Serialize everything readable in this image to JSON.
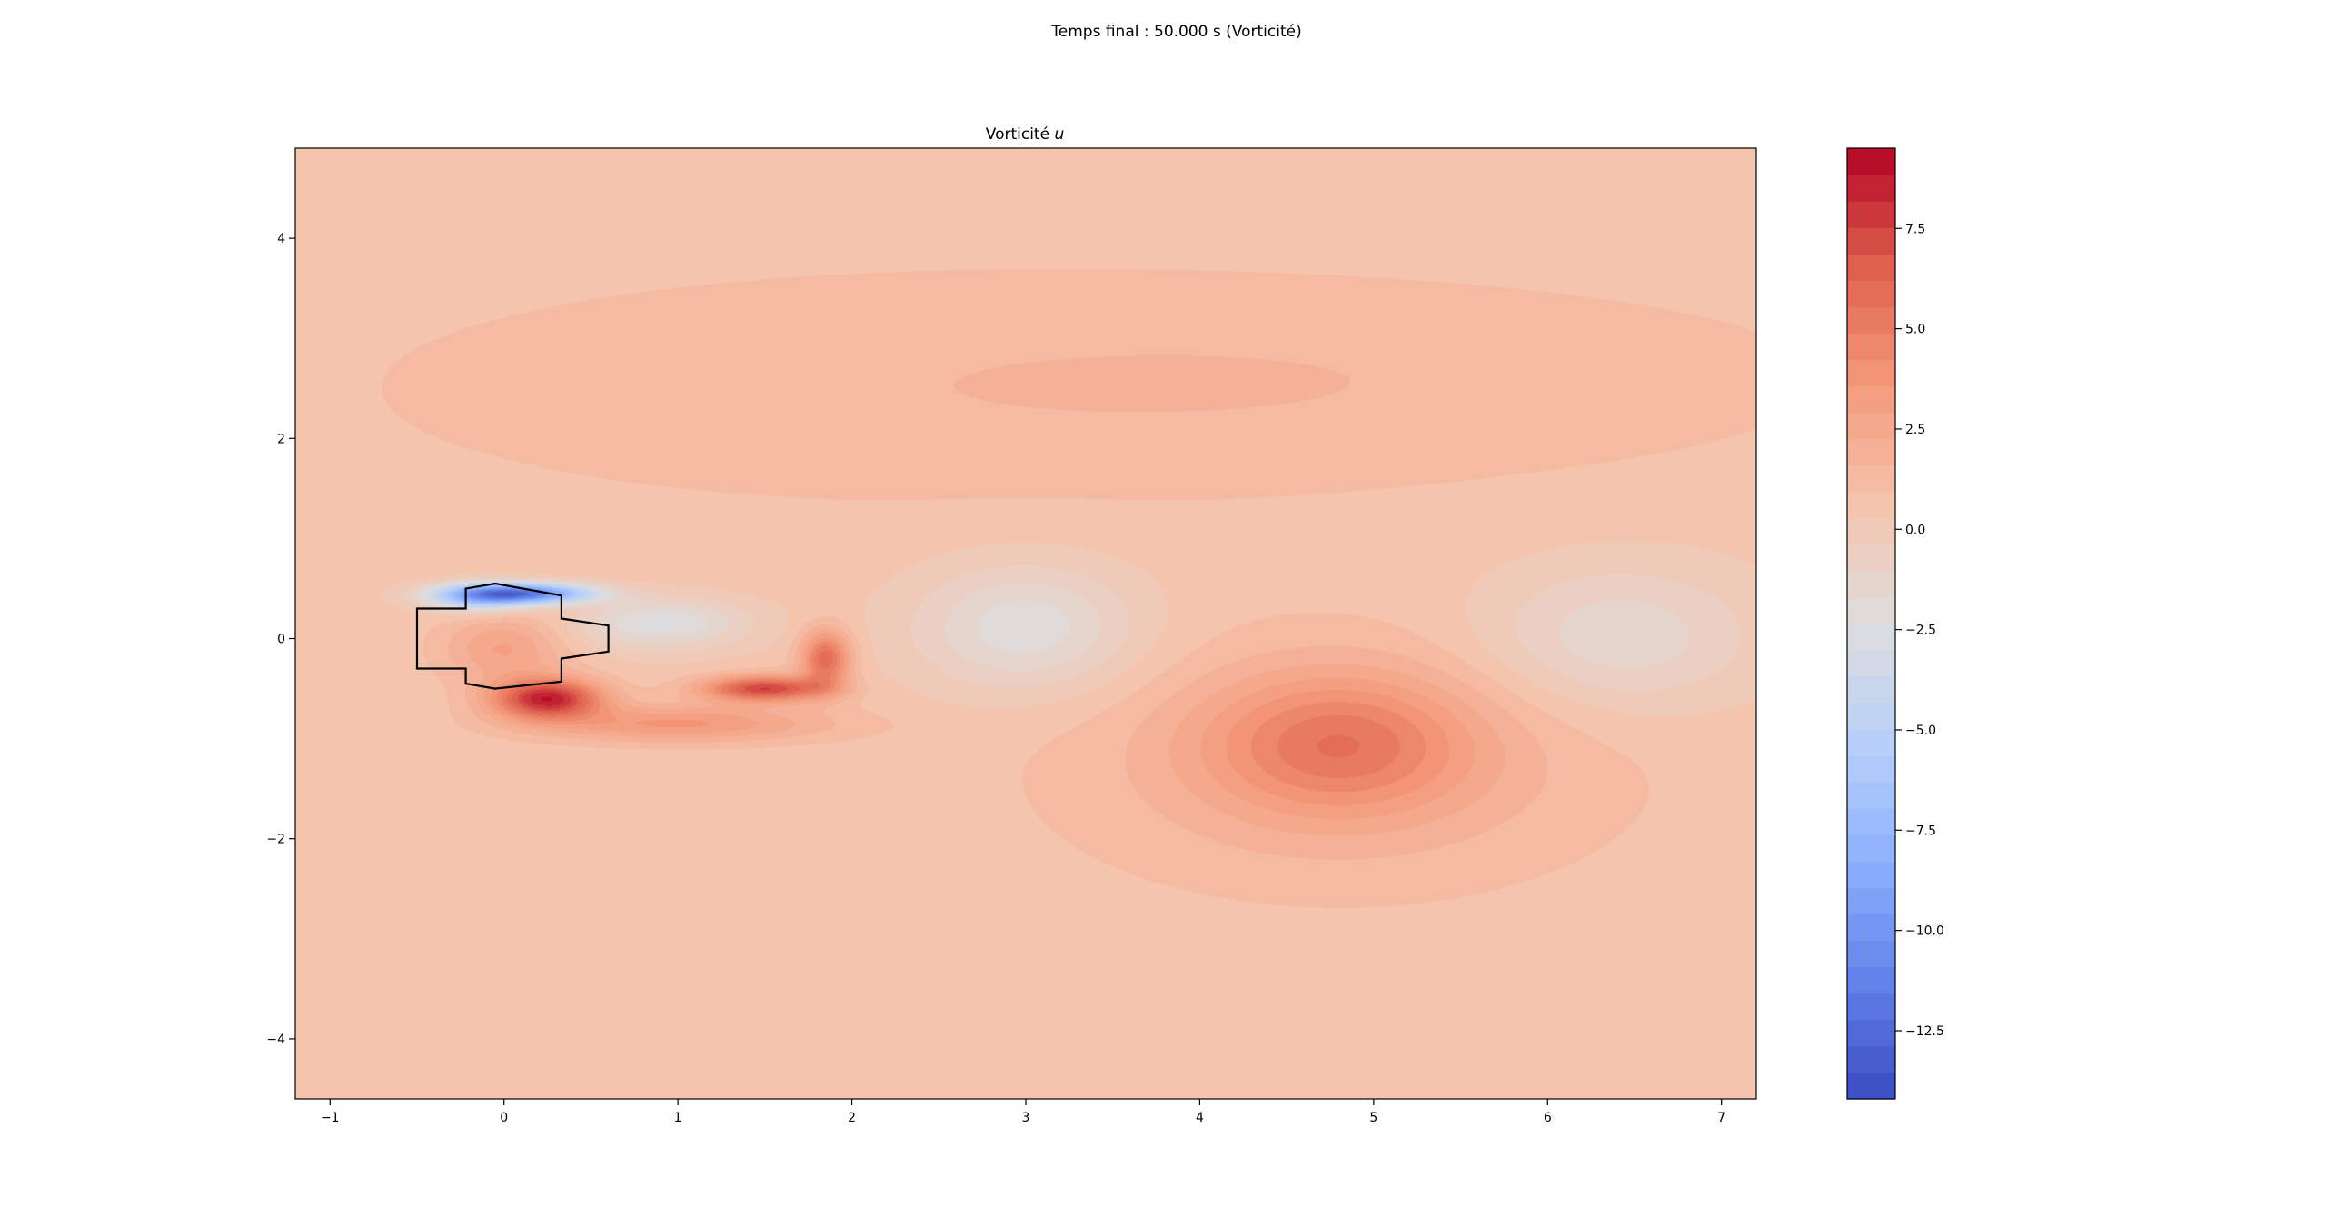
{
  "figure": {
    "suptitle": "Temps final : 50.000 s (Vorticité)"
  },
  "chart_data": {
    "type": "heatmap",
    "title": "Vorticité u",
    "title_main": "Vorticité ",
    "title_italic": "u",
    "xlabel": "",
    "ylabel": "",
    "xlim": [
      -1.2,
      7.2
    ],
    "ylim": [
      -4.6,
      4.9
    ],
    "xticks": [
      -1,
      0,
      1,
      2,
      3,
      4,
      5,
      6,
      7
    ],
    "xtick_labels": [
      "−1",
      "0",
      "1",
      "2",
      "3",
      "4",
      "5",
      "6",
      "7"
    ],
    "yticks": [
      -4,
      -2,
      0,
      2,
      4
    ],
    "ytick_labels": [
      "−4",
      "−2",
      "0",
      "2",
      "4"
    ],
    "colormap": "coolwarm",
    "vmin": -14.2,
    "vmax": 9.5,
    "background_vorticity": 0.5,
    "colorbar_ticks": [
      7.5,
      5.0,
      2.5,
      0.0,
      -2.5,
      -5.0,
      -7.5,
      -10.0,
      -12.5
    ],
    "colorbar_tick_labels": [
      "7.5",
      "5.0",
      "2.5",
      "0.0",
      "−2.5",
      "−5.0",
      "−7.5",
      "−10.0",
      "−12.5"
    ],
    "colorbar_levels": 36,
    "vortex_features": [
      {
        "x": 0.1,
        "y": 0.45,
        "sx": 0.28,
        "sy": 0.07,
        "value": -11.5
      },
      {
        "x": -0.15,
        "y": 0.4,
        "sx": 0.2,
        "sy": 0.1,
        "value": -5
      },
      {
        "x": 0.9,
        "y": 0.15,
        "sx": 0.35,
        "sy": 0.18,
        "value": -3
      },
      {
        "x": 0.25,
        "y": -0.6,
        "sx": 0.22,
        "sy": 0.14,
        "value": 8
      },
      {
        "x": 1.0,
        "y": -0.85,
        "sx": 0.6,
        "sy": 0.13,
        "value": 3.2
      },
      {
        "x": 1.5,
        "y": -0.5,
        "sx": 0.25,
        "sy": 0.09,
        "value": 7
      },
      {
        "x": 1.85,
        "y": -0.2,
        "sx": 0.1,
        "sy": 0.2,
        "value": 5.5
      },
      {
        "x": 0.0,
        "y": -0.1,
        "sx": 0.25,
        "sy": 0.25,
        "value": 2.5
      },
      {
        "x": 3.0,
        "y": 0.1,
        "sx": 0.45,
        "sy": 0.45,
        "value": -2.8
      },
      {
        "x": 4.8,
        "y": -1.05,
        "sx": 0.55,
        "sy": 0.5,
        "value": 3.8
      },
      {
        "x": 4.8,
        "y": -1.3,
        "sx": 1.2,
        "sy": 0.9,
        "value": 1.4
      },
      {
        "x": 6.4,
        "y": 0.0,
        "sx": 0.55,
        "sy": 0.5,
        "value": -2.2
      },
      {
        "x": 2.3,
        "y": 2.5,
        "sx": 2.5,
        "sy": 0.9,
        "value": 0.9
      },
      {
        "x": 5.5,
        "y": 2.6,
        "sx": 2.0,
        "sy": 0.7,
        "value": 0.6
      }
    ],
    "obstacle_polygon": [
      [
        -0.5,
        0.3
      ],
      [
        -0.22,
        0.3
      ],
      [
        -0.22,
        0.5
      ],
      [
        -0.05,
        0.55
      ],
      [
        0.33,
        0.43
      ],
      [
        0.33,
        0.2
      ],
      [
        0.6,
        0.13
      ],
      [
        0.6,
        -0.13
      ],
      [
        0.33,
        -0.2
      ],
      [
        0.33,
        -0.43
      ],
      [
        -0.05,
        -0.5
      ],
      [
        -0.22,
        -0.45
      ],
      [
        -0.22,
        -0.3
      ],
      [
        -0.5,
        -0.3
      ]
    ]
  }
}
